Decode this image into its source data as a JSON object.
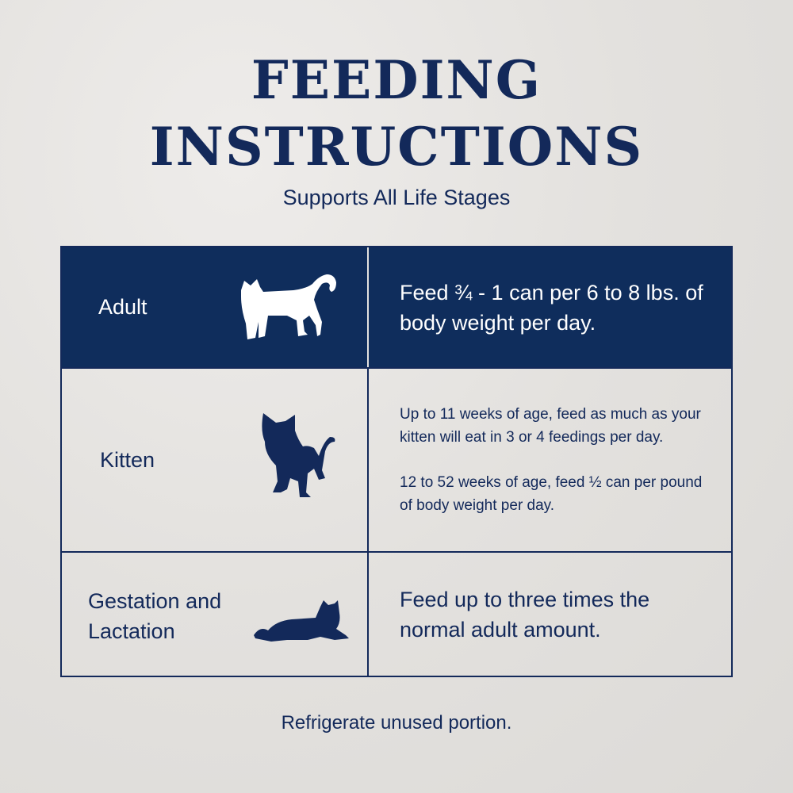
{
  "title_line1": "FEEDING",
  "title_line2": "INSTRUCTIONS",
  "subtitle": "Supports All Life Stages",
  "rows": [
    {
      "stage": "Adult",
      "icon": "standing-cat-icon",
      "text": "Feed ¾ - 1 can per 6 to 8 lbs. of body weight per day."
    },
    {
      "stage": "Kitten",
      "icon": "kitten-icon",
      "text1": "Up to 11 weeks of age, feed as much as your kitten will eat in 3 or 4 feedings per day.",
      "text2": "12 to 52 weeks of age, feed ½ can per pound of body weight per day."
    },
    {
      "stage_line1": "Gestation and",
      "stage_line2": "Lactation",
      "icon": "lying-cat-icon",
      "text": "Feed up to three times the normal adult amount."
    }
  ],
  "footer": "Refrigerate unused portion.",
  "colors": {
    "navy": "#0f2d5c",
    "background": "#e4e2df"
  }
}
